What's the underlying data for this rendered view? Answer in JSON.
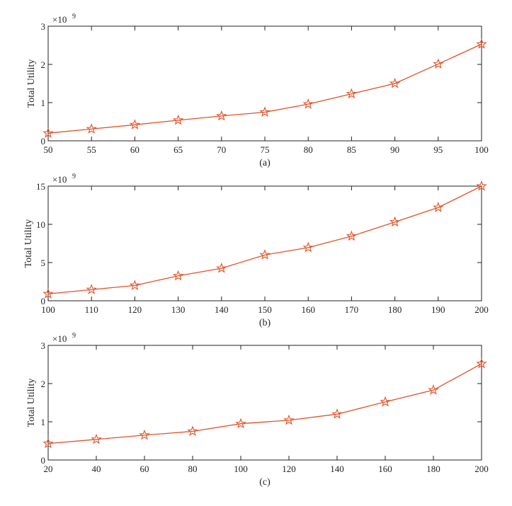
{
  "line_color": "#e0522a",
  "chart_data": [
    {
      "type": "line",
      "caption": "(a)",
      "ylabel": "Total Utility",
      "y_multiplier": "×10",
      "y_exponent": "9",
      "xlim": [
        50,
        100
      ],
      "ylim": [
        0,
        3
      ],
      "xticks": [
        50,
        55,
        60,
        65,
        70,
        75,
        80,
        85,
        90,
        95,
        100
      ],
      "yticks": [
        0,
        1,
        2,
        3
      ],
      "marker": "star",
      "x": [
        50,
        55,
        60,
        65,
        70,
        75,
        80,
        85,
        90,
        95,
        100
      ],
      "y": [
        0.2,
        0.31,
        0.42,
        0.54,
        0.65,
        0.75,
        0.96,
        1.23,
        1.5,
        2.01,
        2.53
      ]
    },
    {
      "type": "line",
      "caption": "(b)",
      "ylabel": "Total Utility",
      "y_multiplier": "×10",
      "y_exponent": "9",
      "xlim": [
        100,
        200
      ],
      "ylim": [
        0,
        15
      ],
      "xticks": [
        100,
        110,
        120,
        130,
        140,
        150,
        160,
        170,
        180,
        190,
        200
      ],
      "yticks": [
        0,
        5,
        10,
        15
      ],
      "marker": "star",
      "x": [
        100,
        110,
        120,
        130,
        140,
        150,
        160,
        170,
        180,
        190,
        200
      ],
      "y": [
        0.9,
        1.46,
        2.0,
        3.26,
        4.25,
        6.0,
        6.96,
        8.45,
        10.3,
        12.2,
        15.0
      ]
    },
    {
      "type": "line",
      "caption": "(c)",
      "ylabel": "Total Utility",
      "y_multiplier": "×10",
      "y_exponent": "9",
      "xlim": [
        20,
        200
      ],
      "ylim": [
        0,
        3
      ],
      "xticks": [
        20,
        40,
        60,
        80,
        100,
        120,
        140,
        160,
        180,
        200
      ],
      "yticks": [
        0,
        1,
        2,
        3
      ],
      "marker": "star",
      "x": [
        20,
        40,
        60,
        80,
        100,
        120,
        140,
        160,
        180,
        200
      ],
      "y": [
        0.43,
        0.54,
        0.65,
        0.75,
        0.95,
        1.04,
        1.2,
        1.52,
        1.83,
        2.52
      ]
    }
  ]
}
